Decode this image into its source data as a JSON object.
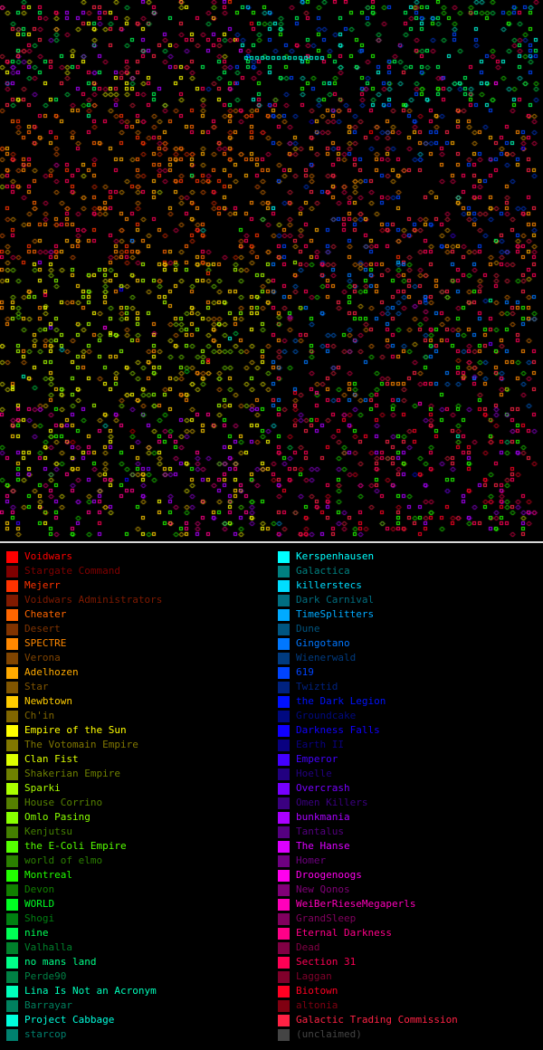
{
  "empires_left": [
    {
      "name": "Voidwars",
      "color": "#ff0000"
    },
    {
      "name": "Stargate Command",
      "color": "#800000"
    },
    {
      "name": "Mejerr",
      "color": "#ff3300"
    },
    {
      "name": "Voidwars Administrators",
      "color": "#801a00"
    },
    {
      "name": "Cheater",
      "color": "#ff6600"
    },
    {
      "name": "Desert",
      "color": "#803300"
    },
    {
      "name": "SPECTRE",
      "color": "#ff8800"
    },
    {
      "name": "Verona",
      "color": "#804400"
    },
    {
      "name": "Adelhozen",
      "color": "#ffaa00"
    },
    {
      "name": "Star",
      "color": "#805500"
    },
    {
      "name": "Newbtown",
      "color": "#ffcc00"
    },
    {
      "name": "Ch'in",
      "color": "#806600"
    },
    {
      "name": "Empire of the Sun",
      "color": "#ffff00"
    },
    {
      "name": "The Votomain Empire",
      "color": "#807700"
    },
    {
      "name": "Clan Fist",
      "color": "#ddff00"
    },
    {
      "name": "Shakerian Empire",
      "color": "#6e8000"
    },
    {
      "name": "Sparki",
      "color": "#aaff00"
    },
    {
      "name": "House Corrino",
      "color": "#558000"
    },
    {
      "name": "Omlo Pasing",
      "color": "#88ff00"
    },
    {
      "name": "Kenjutsu",
      "color": "#448000"
    },
    {
      "name": "the E-Coli Empire",
      "color": "#55ff00"
    },
    {
      "name": "world of elmo",
      "color": "#2b8000"
    },
    {
      "name": "Montreal",
      "color": "#22ff00"
    },
    {
      "name": "Devon",
      "color": "#118000"
    },
    {
      "name": "WORLD",
      "color": "#00ff22"
    },
    {
      "name": "Shogi",
      "color": "#008011"
    },
    {
      "name": "nine",
      "color": "#00ff55"
    },
    {
      "name": "Valhalla",
      "color": "#00802b"
    },
    {
      "name": "no mans land",
      "color": "#00ff88"
    },
    {
      "name": "Perde90",
      "color": "#008044"
    },
    {
      "name": "Lina Is Not an Acronym",
      "color": "#00ffbb"
    },
    {
      "name": "Barrayar",
      "color": "#00805e"
    },
    {
      "name": "Project Cabbage",
      "color": "#00ffdd"
    },
    {
      "name": "starcop",
      "color": "#00806e"
    }
  ],
  "empires_right": [
    {
      "name": "Kerspenhausen",
      "color": "#00ffff"
    },
    {
      "name": "Galactica",
      "color": "#008080"
    },
    {
      "name": "killerstecs",
      "color": "#00ddff"
    },
    {
      "name": "Dark Carnival",
      "color": "#006e80"
    },
    {
      "name": "TimeSplitters",
      "color": "#00aaff"
    },
    {
      "name": "Dune",
      "color": "#005580"
    },
    {
      "name": "Gingotano",
      "color": "#0077ff"
    },
    {
      "name": "Wienerwald",
      "color": "#003b80"
    },
    {
      "name": "619",
      "color": "#0044ff"
    },
    {
      "name": "Twiztid",
      "color": "#002280"
    },
    {
      "name": "the Dark Legion",
      "color": "#0011ff"
    },
    {
      "name": "Groundcake",
      "color": "#000980"
    },
    {
      "name": "Darkness Falls",
      "color": "#1100ff"
    },
    {
      "name": "Earth II",
      "color": "#090080"
    },
    {
      "name": "Emperor",
      "color": "#4400ff"
    },
    {
      "name": "Hoelle",
      "color": "#220080"
    },
    {
      "name": "Overcrash",
      "color": "#7700ff"
    },
    {
      "name": "Omen Killers",
      "color": "#3b0080"
    },
    {
      "name": "bunkmania",
      "color": "#aa00ff"
    },
    {
      "name": "Tantalus",
      "color": "#550080"
    },
    {
      "name": "The Hanse",
      "color": "#dd00ff"
    },
    {
      "name": "Homer",
      "color": "#6e0080"
    },
    {
      "name": "Droogenoogs",
      "color": "#ff00ee"
    },
    {
      "name": "New Qonos",
      "color": "#800077"
    },
    {
      "name": "WeiBerRieseMegaperls",
      "color": "#ff00bb"
    },
    {
      "name": "GrandSleep",
      "color": "#80005e"
    },
    {
      "name": "Eternal Darkness",
      "color": "#ff0088"
    },
    {
      "name": "Dead",
      "color": "#800044"
    },
    {
      "name": "Section 31",
      "color": "#ff0055"
    },
    {
      "name": "Laggan",
      "color": "#80002b"
    },
    {
      "name": "Biotown",
      "color": "#ff0022"
    },
    {
      "name": "altonia",
      "color": "#800011"
    },
    {
      "name": "Galactic Trading Commission",
      "color": "#ff2244"
    },
    {
      "name": "(unclaimed)",
      "color": "#444444"
    }
  ]
}
